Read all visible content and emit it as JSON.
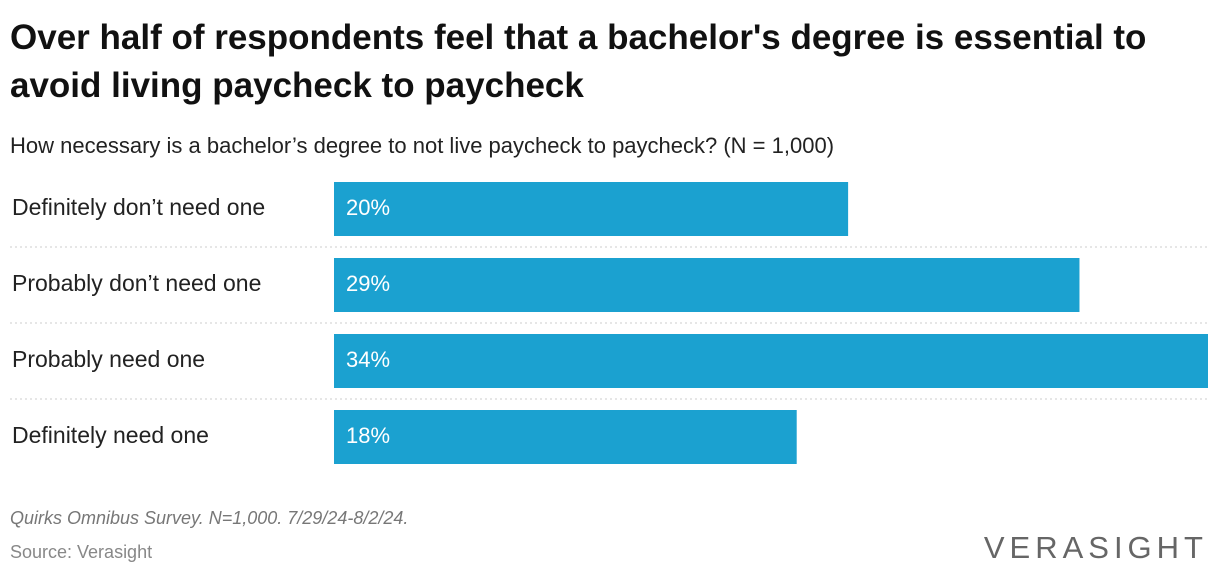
{
  "chart_data": {
    "type": "hbar",
    "title": "Over half of respondents feel that a bachelor's degree is essential to avoid living paycheck to paycheck",
    "subtitle": "How necessary is a bachelor’s degree to not live paycheck to paycheck? (N = 1,000)",
    "categories": [
      "Definitely don’t need one",
      "Probably don’t need one",
      "Probably need one",
      "Definitely need one"
    ],
    "values": [
      20,
      29,
      34,
      18
    ],
    "value_labels": [
      "20%",
      "29%",
      "34%",
      "18%"
    ],
    "color": "#1ba1d0",
    "note": "Quirks Omnibus Survey. N=1,000. 7/29/24-8/2/24.",
    "source": "Source: Verasight",
    "logo": "VERASIGHT"
  }
}
